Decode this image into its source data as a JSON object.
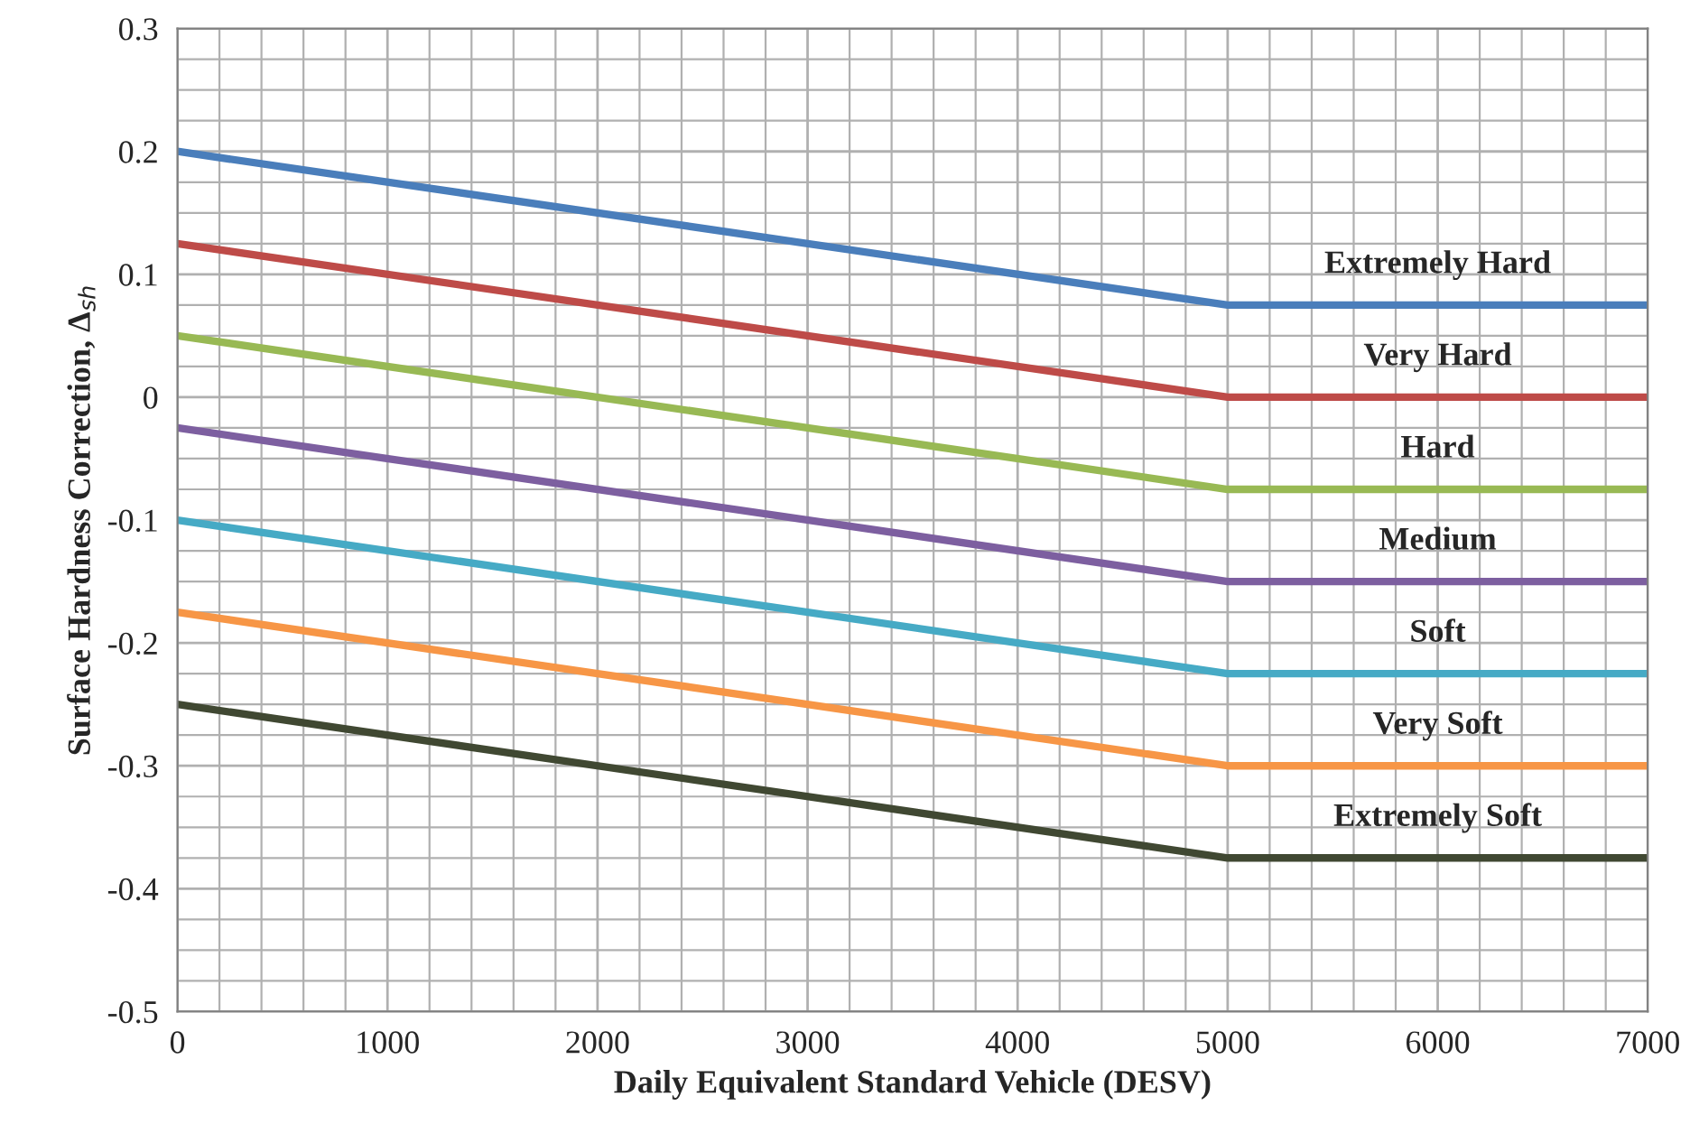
{
  "chart_data": {
    "type": "line",
    "xlabel": "Daily Equivalent Standard Vehicle (DESV)",
    "ylabel": "Surface Hardness Correction, Δ$_{sh}$",
    "x": [
      0,
      5000,
      7000
    ],
    "series": [
      {
        "name": "Extremely Hard",
        "color": "#4a7ebb",
        "values": [
          0.2,
          0.075,
          0.075
        ]
      },
      {
        "name": "Very Hard",
        "color": "#be4b48",
        "values": [
          0.125,
          0,
          0
        ]
      },
      {
        "name": "Hard",
        "color": "#98b954",
        "values": [
          0.05,
          -0.075,
          -0.075
        ]
      },
      {
        "name": "Medium",
        "color": "#7d5fa0",
        "values": [
          -0.025,
          -0.15,
          -0.15
        ]
      },
      {
        "name": "Soft",
        "color": "#46aac5",
        "values": [
          -0.1,
          -0.225,
          -0.225
        ]
      },
      {
        "name": "Very Soft",
        "color": "#f79646",
        "values": [
          -0.175,
          -0.3,
          -0.3
        ]
      },
      {
        "name": "Extremely Soft",
        "color": "#404832",
        "values": [
          -0.25,
          -0.375,
          -0.375
        ]
      }
    ],
    "xlim": [
      0,
      7000
    ],
    "xticks": [
      0,
      1000,
      2000,
      3000,
      4000,
      5000,
      6000,
      7000
    ],
    "ylim": [
      -0.5,
      0.3
    ],
    "yticks": [
      {
        "value": -0.5,
        "label": "-0.5"
      },
      {
        "value": -0.4,
        "label": "-0.4"
      },
      {
        "value": -0.3,
        "label": "-0.3"
      },
      {
        "value": -0.2,
        "label": "-0.2"
      },
      {
        "value": -0.1,
        "label": "-0.1"
      },
      {
        "value": 0,
        "label": "0"
      },
      {
        "value": 0.1,
        "label": "0.1"
      },
      {
        "value": 0.2,
        "label": "0.2"
      },
      {
        "value": 0.3,
        "label": "0.3"
      }
    ],
    "grid": true,
    "legend": false,
    "marker": "none",
    "line_style": "solid"
  }
}
